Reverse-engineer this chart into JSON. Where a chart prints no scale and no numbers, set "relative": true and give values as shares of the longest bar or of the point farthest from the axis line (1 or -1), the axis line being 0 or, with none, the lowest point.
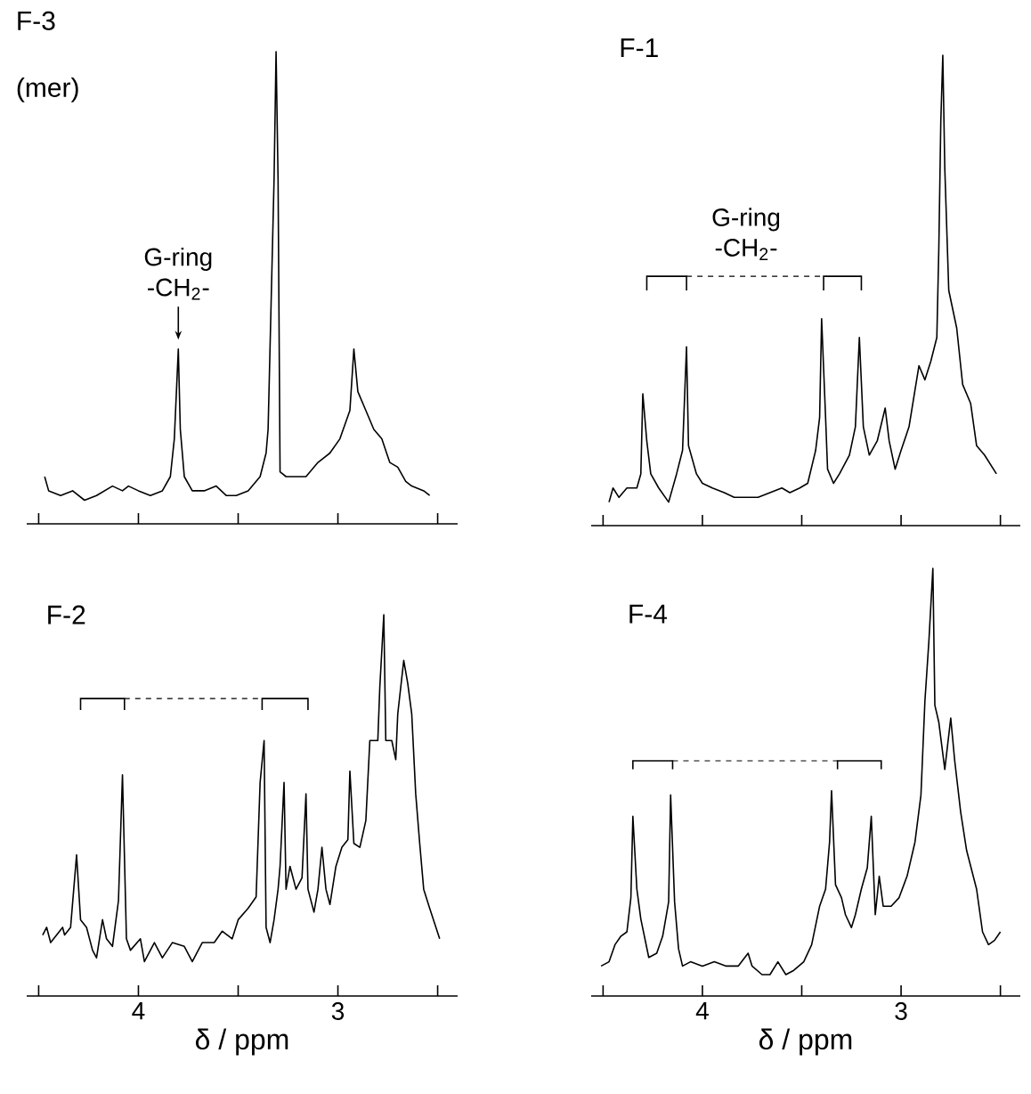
{
  "chart_data": [
    {
      "type": "line",
      "title": "F-3",
      "subtitle": "(mer)",
      "relative": true,
      "xlim": [
        4.56,
        2.4
      ],
      "tick_labels": false,
      "xticks": [
        {
          "value": 4.5,
          "label": null
        },
        4,
        {
          "value": 3.5,
          "label": null
        },
        3,
        {
          "value": 2.5,
          "label": null
        }
      ],
      "annotations": [
        {
          "text": "G-ring -CH$_{2}$-",
          "x": 3.8,
          "y": 0.37
        }
      ],
      "x": [
        4.47,
        4.45,
        4.39,
        4.33,
        4.27,
        4.21,
        4.17,
        4.13,
        4.08,
        4.05,
        4.0,
        3.94,
        3.88,
        3.84,
        3.82,
        3.8,
        3.79,
        3.77,
        3.73,
        3.67,
        3.61,
        3.56,
        3.51,
        3.45,
        3.39,
        3.36,
        3.35,
        3.32,
        3.31,
        3.3,
        3.29,
        3.26,
        3.22,
        3.16,
        3.1,
        3.04,
        2.99,
        2.94,
        2.92,
        2.9,
        2.86,
        2.82,
        2.78,
        2.74,
        2.7,
        2.66,
        2.63,
        2.57,
        2.54
      ],
      "series": [
        {
          "color": "#000000",
          "values": [
            0.1,
            0.07,
            0.06,
            0.07,
            0.05,
            0.06,
            0.07,
            0.08,
            0.07,
            0.08,
            0.07,
            0.06,
            0.07,
            0.1,
            0.18,
            0.37,
            0.2,
            0.1,
            0.07,
            0.07,
            0.08,
            0.06,
            0.06,
            0.07,
            0.1,
            0.15,
            0.2,
            0.73,
            1.0,
            0.73,
            0.11,
            0.1,
            0.1,
            0.1,
            0.13,
            0.15,
            0.18,
            0.24,
            0.37,
            0.28,
            0.24,
            0.2,
            0.18,
            0.13,
            0.12,
            0.09,
            0.08,
            0.07,
            0.06
          ]
        }
      ]
    },
    {
      "type": "line",
      "title": "F-1",
      "relative": true,
      "xlim": [
        4.56,
        2.4
      ],
      "tick_labels": false,
      "xticks": [
        {
          "value": 4.5,
          "label": null
        },
        4,
        {
          "value": 3.5,
          "label": null
        },
        3,
        {
          "value": 2.5,
          "label": null
        }
      ],
      "annotations": [
        "G-ring -CH$_{2}$-"
      ],
      "x": [
        4.47,
        4.45,
        4.42,
        4.38,
        4.33,
        4.31,
        4.3,
        4.28,
        4.26,
        4.22,
        4.17,
        4.13,
        4.1,
        4.08,
        4.07,
        4.03,
        4.0,
        3.95,
        3.89,
        3.84,
        3.78,
        3.72,
        3.66,
        3.6,
        3.56,
        3.51,
        3.47,
        3.43,
        3.41,
        3.4,
        3.38,
        3.37,
        3.34,
        3.31,
        3.26,
        3.23,
        3.21,
        3.19,
        3.16,
        3.12,
        3.08,
        3.06,
        3.03,
        3.0,
        2.96,
        2.91,
        2.88,
        2.85,
        2.82,
        2.81,
        2.8,
        2.79,
        2.78,
        2.76,
        2.72,
        2.69,
        2.65,
        2.62,
        2.58,
        2.52
      ],
      "series": [
        {
          "color": "#000000",
          "values": [
            0.05,
            0.08,
            0.06,
            0.08,
            0.08,
            0.11,
            0.28,
            0.18,
            0.11,
            0.08,
            0.05,
            0.11,
            0.16,
            0.38,
            0.17,
            0.11,
            0.09,
            0.08,
            0.07,
            0.06,
            0.06,
            0.06,
            0.07,
            0.08,
            0.07,
            0.08,
            0.09,
            0.16,
            0.23,
            0.44,
            0.23,
            0.12,
            0.09,
            0.11,
            0.15,
            0.21,
            0.4,
            0.21,
            0.15,
            0.18,
            0.25,
            0.18,
            0.12,
            0.16,
            0.21,
            0.34,
            0.31,
            0.35,
            0.4,
            0.59,
            0.86,
            1.0,
            0.76,
            0.5,
            0.42,
            0.3,
            0.26,
            0.17,
            0.15,
            0.11
          ]
        }
      ]
    },
    {
      "type": "line",
      "title": "F-2",
      "xlabel": "δ / ppm",
      "relative": true,
      "xlim": [
        4.56,
        2.4
      ],
      "tick_labels": "x",
      "xticks": [
        {
          "value": 4.5,
          "label": null
        },
        4,
        {
          "value": 3.5,
          "label": null
        },
        3,
        {
          "value": 2.5,
          "label": null
        }
      ],
      "x": [
        4.48,
        4.46,
        4.44,
        4.41,
        4.38,
        4.37,
        4.34,
        4.31,
        4.29,
        4.26,
        4.23,
        4.21,
        4.18,
        4.16,
        4.13,
        4.1,
        4.08,
        4.06,
        4.04,
        3.99,
        3.97,
        3.92,
        3.88,
        3.83,
        3.77,
        3.73,
        3.68,
        3.62,
        3.58,
        3.53,
        3.5,
        3.45,
        3.41,
        3.39,
        3.37,
        3.36,
        3.34,
        3.32,
        3.3,
        3.29,
        3.27,
        3.26,
        3.24,
        3.21,
        3.18,
        3.16,
        3.15,
        3.12,
        3.1,
        3.08,
        3.06,
        3.04,
        3.01,
        2.98,
        2.95,
        2.94,
        2.92,
        2.89,
        2.86,
        2.84,
        2.8,
        2.79,
        2.77,
        2.76,
        2.73,
        2.71,
        2.7,
        2.67,
        2.65,
        2.63,
        2.61,
        2.59,
        2.57,
        2.54,
        2.49
      ],
      "series": [
        {
          "color": "#000000",
          "values": [
            0.16,
            0.18,
            0.14,
            0.16,
            0.18,
            0.16,
            0.18,
            0.37,
            0.2,
            0.18,
            0.12,
            0.1,
            0.2,
            0.15,
            0.13,
            0.25,
            0.58,
            0.15,
            0.12,
            0.15,
            0.09,
            0.14,
            0.1,
            0.14,
            0.13,
            0.09,
            0.14,
            0.14,
            0.17,
            0.15,
            0.2,
            0.23,
            0.26,
            0.56,
            0.67,
            0.18,
            0.14,
            0.2,
            0.28,
            0.34,
            0.56,
            0.28,
            0.34,
            0.28,
            0.31,
            0.53,
            0.28,
            0.22,
            0.28,
            0.39,
            0.28,
            0.24,
            0.34,
            0.39,
            0.41,
            0.59,
            0.4,
            0.39,
            0.46,
            0.67,
            0.67,
            0.81,
            1.0,
            0.67,
            0.67,
            0.62,
            0.74,
            0.88,
            0.82,
            0.74,
            0.53,
            0.4,
            0.28,
            0.23,
            0.15
          ]
        }
      ]
    },
    {
      "type": "line",
      "title": "F-4",
      "xlabel": "δ / ppm",
      "relative": true,
      "xlim": [
        4.56,
        2.4
      ],
      "tick_labels": "x",
      "xticks": [
        {
          "value": 4.5,
          "label": null
        },
        4,
        {
          "value": 3.5,
          "label": null
        },
        3,
        {
          "value": 2.5,
          "label": null
        }
      ],
      "x": [
        4.51,
        4.47,
        4.44,
        4.41,
        4.38,
        4.36,
        4.35,
        4.33,
        4.31,
        4.27,
        4.23,
        4.2,
        4.17,
        4.16,
        4.14,
        4.12,
        4.1,
        4.06,
        4.0,
        3.94,
        3.88,
        3.82,
        3.77,
        3.75,
        3.7,
        3.66,
        3.62,
        3.58,
        3.54,
        3.49,
        3.45,
        3.41,
        3.38,
        3.36,
        3.35,
        3.33,
        3.3,
        3.28,
        3.25,
        3.23,
        3.2,
        3.17,
        3.15,
        3.13,
        3.11,
        3.09,
        3.05,
        3.01,
        2.97,
        2.93,
        2.9,
        2.88,
        2.86,
        2.84,
        2.83,
        2.81,
        2.78,
        2.75,
        2.73,
        2.7,
        2.67,
        2.62,
        2.59,
        2.56,
        2.53,
        2.5
      ],
      "series": [
        {
          "color": "#000000",
          "values": [
            0.07,
            0.08,
            0.12,
            0.14,
            0.15,
            0.23,
            0.42,
            0.25,
            0.18,
            0.09,
            0.1,
            0.14,
            0.22,
            0.47,
            0.22,
            0.11,
            0.07,
            0.08,
            0.07,
            0.08,
            0.07,
            0.07,
            0.1,
            0.07,
            0.05,
            0.05,
            0.08,
            0.05,
            0.06,
            0.08,
            0.12,
            0.21,
            0.25,
            0.36,
            0.48,
            0.26,
            0.23,
            0.19,
            0.16,
            0.19,
            0.25,
            0.3,
            0.42,
            0.19,
            0.28,
            0.21,
            0.21,
            0.23,
            0.28,
            0.36,
            0.47,
            0.69,
            0.83,
            1.0,
            0.68,
            0.64,
            0.53,
            0.65,
            0.55,
            0.43,
            0.34,
            0.25,
            0.15,
            0.12,
            0.13,
            0.15
          ]
        }
      ]
    }
  ]
}
